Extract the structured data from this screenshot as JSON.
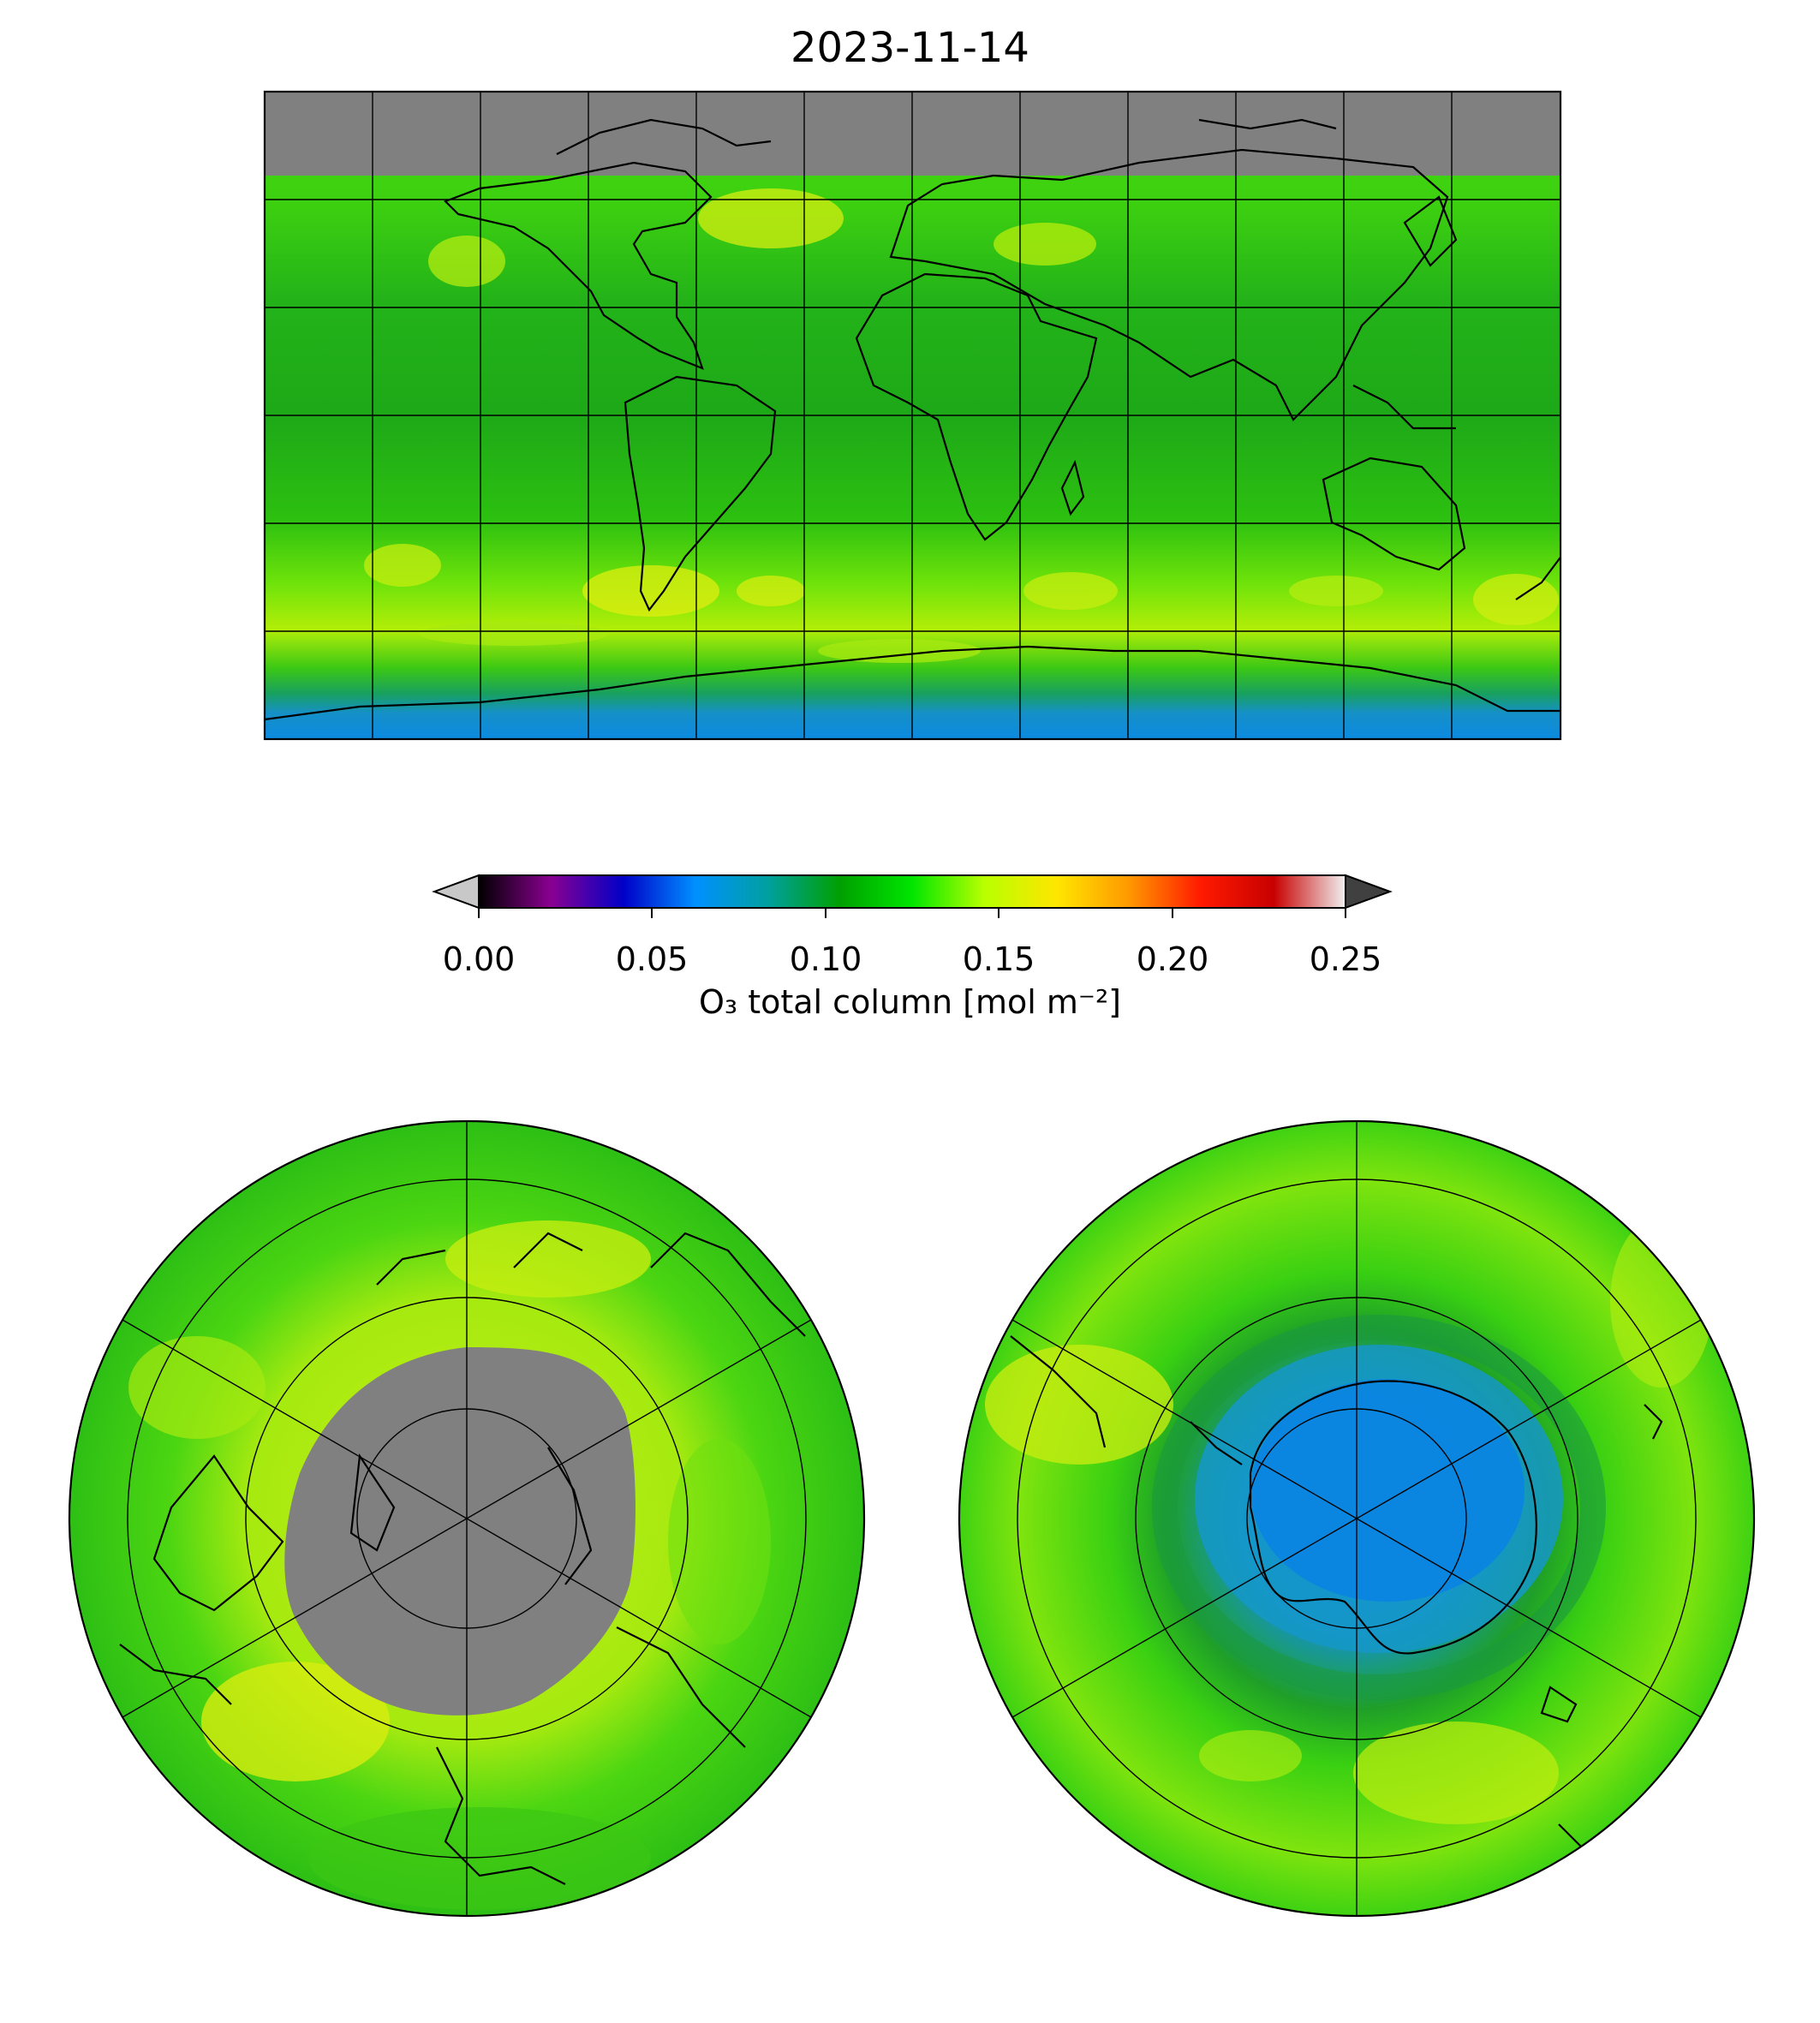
{
  "title": "2023-11-14",
  "colorbar": {
    "label": "O₃ total column [mol m⁻²]",
    "ticks": [
      "0.00",
      "0.05",
      "0.10",
      "0.15",
      "0.20",
      "0.25"
    ],
    "range": [
      0,
      0.25
    ],
    "extend": "both",
    "colors": [
      "#000000",
      "#8a0091",
      "#0000c8",
      "#0090ff",
      "#00a0a0",
      "#00a000",
      "#00e600",
      "#b8ff00",
      "#ffe600",
      "#ff9900",
      "#ff1a00",
      "#c80000",
      "#f0f0f0"
    ],
    "under_color": "#c8c8c8",
    "over_color": "#404040"
  },
  "panels": [
    {
      "projection": "plate-carree",
      "region": "global"
    },
    {
      "projection": "north-polar-stereographic",
      "region": "arctic",
      "no_data_color": "#808080"
    },
    {
      "projection": "south-polar-stereographic",
      "region": "antarctic",
      "ozone_hole": true
    }
  ],
  "colors": {
    "no_data": "#808080",
    "background_field": "#33cc10",
    "high": "#c8f000",
    "low": "#1595d8",
    "coastline": "#000000",
    "grid": "#000000"
  }
}
